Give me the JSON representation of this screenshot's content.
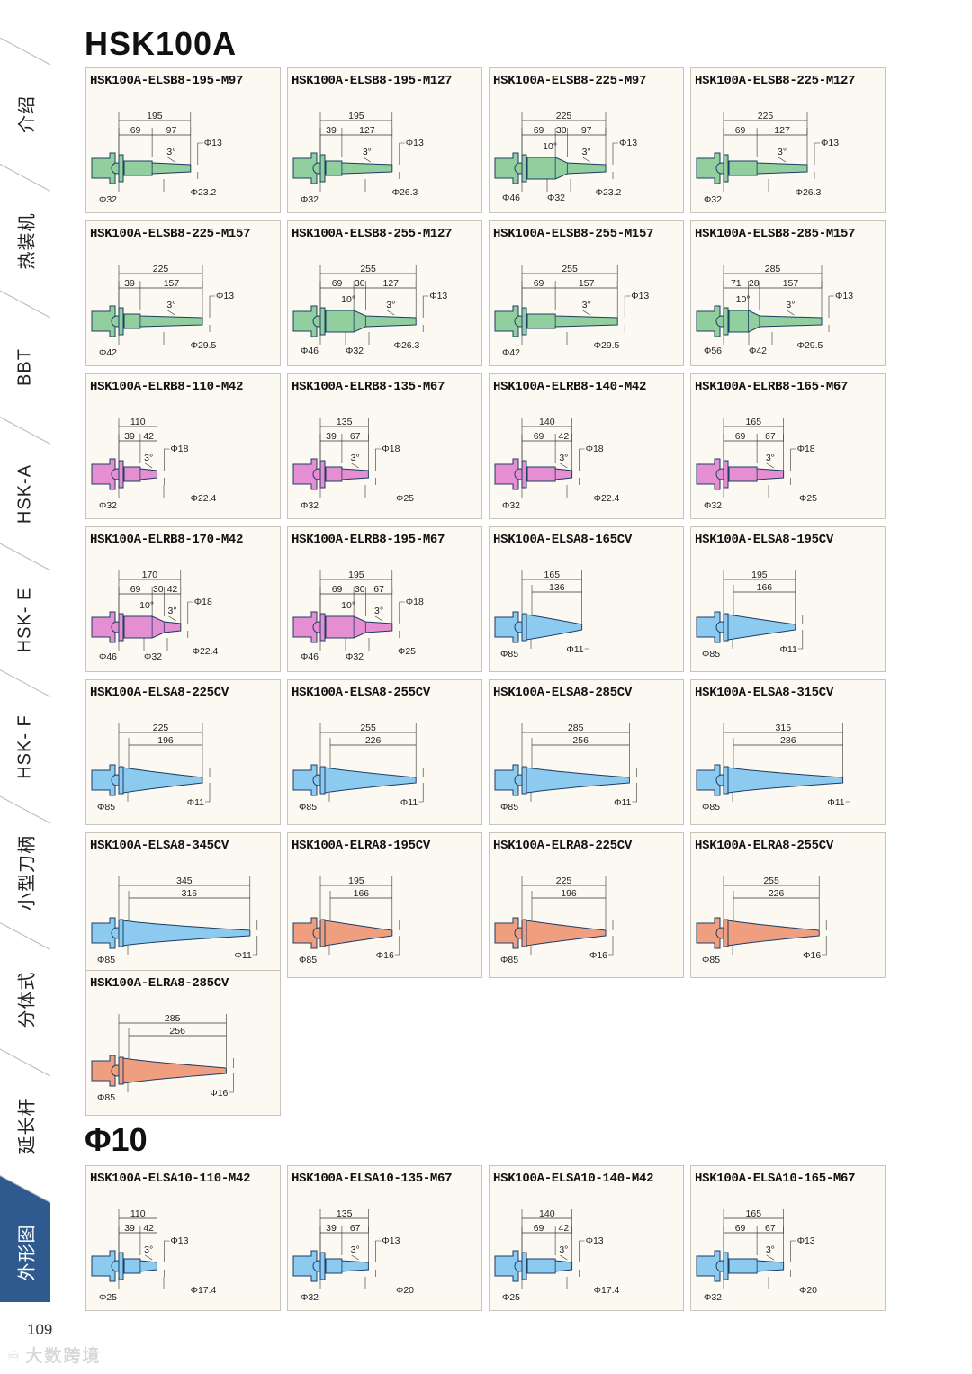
{
  "page": {
    "title": "HSK100A",
    "section2_title": "Φ10",
    "page_number": "109",
    "watermark": "大数跨境"
  },
  "sidebar": {
    "tabs": [
      {
        "label": "介绍",
        "active": false
      },
      {
        "label": "热装机",
        "active": false
      },
      {
        "label": "BBT",
        "active": false
      },
      {
        "label": "HSK-A",
        "active": false
      },
      {
        "label": "HSK- E",
        "active": false
      },
      {
        "label": "HSK- F",
        "active": false
      },
      {
        "label": "小型刀柄",
        "active": false
      },
      {
        "label": "分体式",
        "active": false
      },
      {
        "label": "延长杆",
        "active": false
      },
      {
        "label": "外形图",
        "active": true
      }
    ],
    "active_color": "#2e5a8f"
  },
  "colors": {
    "green": "#92cf9e",
    "pink": "#e58fd2",
    "blue": "#8ccbef",
    "salmon": "#ef9f7f",
    "card_bg": "#fcf9f3",
    "card_border": "#c9c4b8"
  },
  "cards": [
    {
      "title": "HSK100A-ELSB8-195-M97",
      "kind": "sb",
      "color": "green",
      "total": "195",
      "segs": [
        "69",
        "97"
      ],
      "angle": "3°",
      "tip": "Φ13",
      "dia": [
        "Φ32",
        "Φ23.2"
      ]
    },
    {
      "title": "HSK100A-ELSB8-195-M127",
      "kind": "sb",
      "color": "green",
      "total": "195",
      "segs": [
        "39",
        "127"
      ],
      "angle": "3°",
      "tip": "Φ13",
      "dia": [
        "Φ32",
        "Φ26.3"
      ]
    },
    {
      "title": "HSK100A-ELSB8-225-M97",
      "kind": "sb",
      "color": "green",
      "total": "225",
      "segs": [
        "69",
        "30",
        "97"
      ],
      "angle2": "10°",
      "angle": "3°",
      "tip": "Φ13",
      "dia": [
        "Φ46",
        "Φ32",
        "Φ23.2"
      ]
    },
    {
      "title": "HSK100A-ELSB8-225-M127",
      "kind": "sb",
      "color": "green",
      "total": "225",
      "segs": [
        "69",
        "127"
      ],
      "angle": "3°",
      "tip": "Φ13",
      "dia": [
        "Φ32",
        "Φ26.3"
      ]
    },
    {
      "title": "HSK100A-ELSB8-225-M157",
      "kind": "sb",
      "color": "green",
      "total": "225",
      "segs": [
        "39",
        "157"
      ],
      "angle": "3°",
      "tip": "Φ13",
      "dia": [
        "Φ42",
        "Φ29.5"
      ]
    },
    {
      "title": "HSK100A-ELSB8-255-M127",
      "kind": "sb",
      "color": "green",
      "total": "255",
      "segs": [
        "69",
        "30",
        "127"
      ],
      "angle2": "10°",
      "angle": "3°",
      "tip": "Φ13",
      "dia": [
        "Φ46",
        "Φ32",
        "Φ26.3"
      ]
    },
    {
      "title": "HSK100A-ELSB8-255-M157",
      "kind": "sb",
      "color": "green",
      "total": "255",
      "segs": [
        "69",
        "157"
      ],
      "angle": "3°",
      "tip": "Φ13",
      "dia": [
        "Φ42",
        "Φ29.5"
      ]
    },
    {
      "title": "HSK100A-ELSB8-285-M157",
      "kind": "sb",
      "color": "green",
      "total": "285",
      "segs": [
        "71",
        "28",
        "157"
      ],
      "angle2": "10°",
      "angle": "3°",
      "tip": "Φ13",
      "dia": [
        "Φ56",
        "Φ42",
        "Φ29.5"
      ]
    },
    {
      "title": "HSK100A-ELRB8-110-M42",
      "kind": "sb",
      "color": "pink",
      "total": "110",
      "segs": [
        "39",
        "42"
      ],
      "angle": "3°",
      "tip": "Φ18",
      "dia": [
        "Φ32",
        "Φ22.4"
      ]
    },
    {
      "title": "HSK100A-ELRB8-135-M67",
      "kind": "sb",
      "color": "pink",
      "total": "135",
      "segs": [
        "39",
        "67"
      ],
      "angle": "3°",
      "tip": "Φ18",
      "dia": [
        "Φ32",
        "Φ25"
      ]
    },
    {
      "title": "HSK100A-ELRB8-140-M42",
      "kind": "sb",
      "color": "pink",
      "total": "140",
      "segs": [
        "69",
        "42"
      ],
      "angle": "3°",
      "tip": "Φ18",
      "dia": [
        "Φ32",
        "Φ22.4"
      ]
    },
    {
      "title": "HSK100A-ELRB8-165-M67",
      "kind": "sb",
      "color": "pink",
      "total": "165",
      "segs": [
        "69",
        "67"
      ],
      "angle": "3°",
      "tip": "Φ18",
      "dia": [
        "Φ32",
        "Φ25"
      ]
    },
    {
      "title": "HSK100A-ELRB8-170-M42",
      "kind": "sb",
      "color": "pink",
      "total": "170",
      "segs": [
        "69",
        "30",
        "42"
      ],
      "angle2": "10°",
      "angle": "3°",
      "tip": "Φ18",
      "dia": [
        "Φ46",
        "Φ32",
        "Φ22.4"
      ]
    },
    {
      "title": "HSK100A-ELRB8-195-M67",
      "kind": "sb",
      "color": "pink",
      "total": "195",
      "segs": [
        "69",
        "30",
        "67"
      ],
      "angle2": "10°",
      "angle": "3°",
      "tip": "Φ18",
      "dia": [
        "Φ46",
        "Φ32",
        "Φ25"
      ]
    },
    {
      "title": "HSK100A-ELSA8-165CV",
      "kind": "cv",
      "color": "blue",
      "total": "165",
      "inner": "136",
      "base": "Φ85",
      "tip": "Φ11"
    },
    {
      "title": "HSK100A-ELSA8-195CV",
      "kind": "cv",
      "color": "blue",
      "total": "195",
      "inner": "166",
      "base": "Φ85",
      "tip": "Φ11"
    },
    {
      "title": "HSK100A-ELSA8-225CV",
      "kind": "cv",
      "color": "blue",
      "total": "225",
      "inner": "196",
      "base": "Φ85",
      "tip": "Φ11"
    },
    {
      "title": "HSK100A-ELSA8-255CV",
      "kind": "cv",
      "color": "blue",
      "total": "255",
      "inner": "226",
      "base": "Φ85",
      "tip": "Φ11"
    },
    {
      "title": "HSK100A-ELSA8-285CV",
      "kind": "cv",
      "color": "blue",
      "total": "285",
      "inner": "256",
      "base": "Φ85",
      "tip": "Φ11"
    },
    {
      "title": "HSK100A-ELSA8-315CV",
      "kind": "cv",
      "color": "blue",
      "total": "315",
      "inner": "286",
      "base": "Φ85",
      "tip": "Φ11"
    },
    {
      "title": "HSK100A-ELSA8-345CV",
      "kind": "cv",
      "color": "blue",
      "total": "345",
      "inner": "316",
      "base": "Φ85",
      "tip": "Φ11"
    },
    {
      "title": "HSK100A-ELRA8-195CV",
      "kind": "cv",
      "color": "salmon",
      "total": "195",
      "inner": "166",
      "base": "Φ85",
      "tip": "Φ16"
    },
    {
      "title": "HSK100A-ELRA8-225CV",
      "kind": "cv",
      "color": "salmon",
      "total": "225",
      "inner": "196",
      "base": "Φ85",
      "tip": "Φ16"
    },
    {
      "title": "HSK100A-ELRA8-255CV",
      "kind": "cv",
      "color": "salmon",
      "total": "255",
      "inner": "226",
      "base": "Φ85",
      "tip": "Φ16"
    },
    {
      "title": "HSK100A-ELRA8-285CV",
      "kind": "cv",
      "color": "salmon",
      "total": "285",
      "inner": "256",
      "base": "Φ85",
      "tip": "Φ16"
    },
    {
      "title": "HSK100A-ELSA10-110-M42",
      "kind": "sb",
      "color": "blue",
      "total": "110",
      "segs": [
        "39",
        "42"
      ],
      "angle": "3°",
      "tip": "Φ13",
      "dia": [
        "Φ25",
        "Φ17.4"
      ]
    },
    {
      "title": "HSK100A-ELSA10-135-M67",
      "kind": "sb",
      "color": "blue",
      "total": "135",
      "segs": [
        "39",
        "67"
      ],
      "angle": "3°",
      "tip": "Φ13",
      "dia": [
        "Φ32",
        "Φ20"
      ]
    },
    {
      "title": "HSK100A-ELSA10-140-M42",
      "kind": "sb",
      "color": "blue",
      "total": "140",
      "segs": [
        "69",
        "42"
      ],
      "angle": "3°",
      "tip": "Φ13",
      "dia": [
        "Φ25",
        "Φ17.4"
      ]
    },
    {
      "title": "HSK100A-ELSA10-165-M67",
      "kind": "sb",
      "color": "blue",
      "total": "165",
      "segs": [
        "69",
        "67"
      ],
      "angle": "3°",
      "tip": "Φ13",
      "dia": [
        "Φ32",
        "Φ20"
      ]
    }
  ]
}
